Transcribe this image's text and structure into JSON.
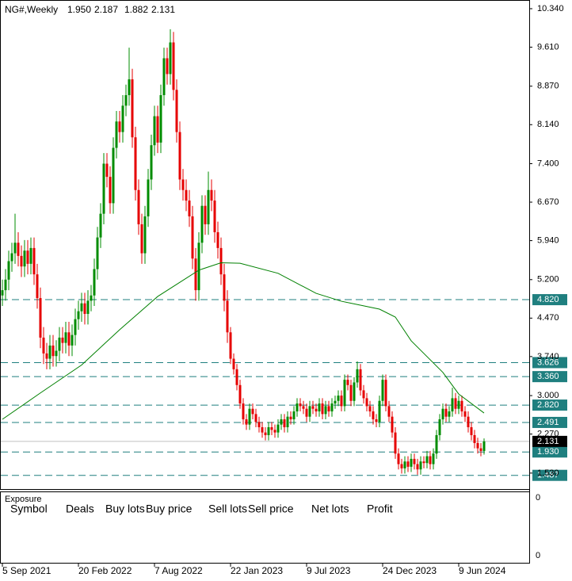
{
  "chart_data": {
    "type": "candlestick",
    "title": "NG#,Weekly",
    "last_labels": [
      "1.950",
      "2.187",
      "1.882",
      "2.131"
    ],
    "up_color": "#008c00",
    "down_color": "#e60000",
    "xlim": [
      -0.75,
      166.25
    ],
    "xticks": [
      {
        "value": 0,
        "label": "5 Sep 2021"
      },
      {
        "value": 24,
        "label": "20 Feb 2022"
      },
      {
        "value": 48,
        "label": "7 Aug 2022"
      },
      {
        "value": 72,
        "label": "22 Jan 2023"
      },
      {
        "value": 96,
        "label": "9 Jul 2023"
      },
      {
        "value": 120,
        "label": "24 Dec 2023"
      },
      {
        "value": 144,
        "label": "9 Jun 2024"
      }
    ],
    "ylim": [
      1.227,
      10.505
    ],
    "yticks": [
      {
        "value": 10.34,
        "label": "10.340"
      },
      {
        "value": 9.61,
        "label": "9.610"
      },
      {
        "value": 8.87,
        "label": "8.870"
      },
      {
        "value": 8.14,
        "label": "8.140"
      },
      {
        "value": 7.4,
        "label": "7.400"
      },
      {
        "value": 6.67,
        "label": "6.670"
      },
      {
        "value": 5.94,
        "label": "5.940"
      },
      {
        "value": 5.2,
        "label": "5.200"
      },
      {
        "value": 4.47,
        "label": "4.470"
      },
      {
        "value": 3.74,
        "label": "3.740"
      },
      {
        "value": 3.0,
        "label": "3.000"
      },
      {
        "value": 2.27,
        "label": "2.270"
      },
      {
        "value": 1.53,
        "label": "1.530"
      }
    ],
    "ohlc": {
      "open": [
        4.9,
        5.0,
        5.2,
        5.55,
        5.7,
        5.9,
        5.65,
        5.45,
        5.75,
        5.5,
        5.8,
        5.3,
        4.85,
        4.1,
        3.8,
        3.7,
        3.95,
        3.75,
        3.85,
        4.1,
        4.0,
        4.2,
        3.95,
        4.15,
        4.45,
        4.6,
        4.75,
        4.55,
        4.8,
        4.9,
        5.4,
        6.0,
        6.45,
        7.4,
        7.15,
        6.65,
        7.7,
        8.2,
        8.0,
        8.5,
        8.7,
        9.0,
        7.9,
        6.9,
        6.25,
        5.7,
        6.4,
        7.1,
        7.75,
        8.3,
        7.8,
        8.7,
        9.4,
        9.1,
        9.7,
        8.8,
        8.0,
        7.1,
        6.9,
        6.7,
        6.4,
        5.6,
        5.0,
        5.9,
        6.6,
        6.25,
        6.9,
        6.7,
        6.1,
        5.8,
        5.3,
        4.8,
        4.2,
        3.7,
        3.5,
        3.2,
        2.85,
        2.55,
        2.45,
        2.75,
        2.65,
        2.5,
        2.4,
        2.3,
        2.25,
        2.4,
        2.35,
        2.3,
        2.45,
        2.55,
        2.4,
        2.6,
        2.55,
        2.7,
        2.85,
        2.8,
        2.75,
        2.6,
        2.8,
        2.75,
        2.7,
        2.85,
        2.65,
        2.8,
        2.7,
        2.85,
        2.9,
        3.0,
        2.8,
        3.3,
        3.2,
        2.9,
        3.25,
        3.5,
        3.1,
        2.95,
        2.8,
        2.7,
        2.55,
        2.5,
        2.9,
        3.3,
        2.8,
        2.6,
        2.3,
        1.9,
        1.7,
        1.62,
        1.75,
        1.65,
        1.8,
        1.7,
        1.6,
        1.75,
        1.72,
        1.85,
        1.7,
        1.9,
        2.25,
        2.55,
        2.75,
        2.6,
        2.7,
        2.95,
        2.75,
        2.9,
        2.7,
        2.6,
        2.4,
        2.25,
        2.1,
        2.0,
        1.95
      ],
      "high": [
        5.2,
        5.4,
        5.75,
        5.9,
        6.45,
        6.1,
        5.85,
        5.95,
        5.95,
        6.0,
        6.0,
        5.5,
        5.05,
        4.3,
        4.0,
        4.15,
        4.15,
        4.05,
        4.3,
        4.3,
        4.4,
        4.4,
        4.35,
        4.65,
        4.8,
        4.95,
        4.95,
        5.0,
        5.1,
        5.6,
        6.2,
        6.65,
        7.6,
        7.6,
        7.35,
        7.9,
        8.4,
        8.4,
        8.7,
        8.9,
        9.6,
        9.2,
        8.1,
        7.1,
        6.45,
        6.6,
        7.3,
        7.95,
        8.5,
        8.5,
        8.9,
        9.6,
        9.6,
        9.95,
        9.9,
        9.0,
        8.2,
        7.3,
        7.1,
        6.9,
        6.6,
        5.8,
        6.1,
        6.8,
        6.8,
        7.25,
        7.1,
        6.9,
        6.3,
        6.0,
        5.5,
        5.0,
        4.3,
        3.8,
        3.6,
        3.3,
        2.95,
        2.65,
        2.85,
        2.85,
        2.75,
        2.6,
        2.5,
        2.4,
        2.5,
        2.5,
        2.45,
        2.55,
        2.65,
        2.65,
        2.7,
        2.7,
        2.8,
        2.95,
        2.95,
        2.9,
        2.85,
        2.9,
        2.9,
        2.85,
        2.95,
        2.95,
        2.9,
        2.9,
        2.95,
        3.0,
        3.1,
        3.1,
        3.4,
        3.4,
        3.3,
        3.35,
        3.65,
        3.6,
        3.2,
        3.05,
        2.9,
        2.8,
        2.65,
        3.0,
        3.4,
        3.4,
        2.9,
        2.7,
        2.4,
        2.0,
        1.8,
        1.85,
        1.85,
        1.9,
        1.9,
        1.8,
        1.85,
        1.85,
        1.95,
        1.95,
        2.0,
        2.35,
        2.65,
        2.85,
        2.85,
        2.8,
        3.15,
        3.05,
        3.0,
        3.0,
        2.8,
        2.7,
        2.5,
        2.35,
        2.2,
        2.1,
        2.187
      ],
      "low": [
        4.7,
        4.8,
        5.0,
        5.35,
        5.5,
        5.45,
        5.25,
        5.25,
        5.3,
        5.3,
        5.1,
        4.65,
        3.9,
        3.6,
        3.5,
        3.5,
        3.55,
        3.55,
        3.65,
        3.8,
        3.8,
        3.75,
        3.75,
        3.95,
        4.25,
        4.4,
        4.35,
        4.35,
        4.6,
        4.7,
        5.2,
        5.8,
        6.25,
        6.95,
        6.45,
        6.45,
        7.5,
        7.8,
        7.8,
        8.3,
        8.5,
        7.7,
        6.7,
        6.05,
        5.5,
        5.5,
        6.2,
        6.9,
        7.55,
        7.6,
        7.6,
        8.5,
        8.9,
        8.9,
        8.6,
        7.8,
        6.9,
        6.7,
        6.5,
        6.2,
        5.4,
        4.8,
        4.8,
        5.7,
        6.05,
        6.05,
        6.5,
        5.9,
        5.6,
        5.1,
        4.6,
        4.0,
        3.6,
        3.4,
        3.1,
        2.75,
        2.45,
        2.35,
        2.35,
        2.55,
        2.4,
        2.3,
        2.2,
        2.15,
        2.15,
        2.25,
        2.2,
        2.2,
        2.35,
        2.3,
        2.3,
        2.45,
        2.45,
        2.6,
        2.7,
        2.65,
        2.5,
        2.5,
        2.65,
        2.6,
        2.6,
        2.55,
        2.55,
        2.6,
        2.6,
        2.75,
        2.8,
        2.7,
        2.7,
        3.1,
        2.8,
        2.8,
        3.15,
        3.0,
        2.85,
        2.7,
        2.6,
        2.45,
        2.4,
        2.4,
        2.8,
        2.7,
        2.5,
        2.2,
        1.8,
        1.6,
        1.52,
        1.52,
        1.55,
        1.55,
        1.6,
        1.5,
        1.5,
        1.62,
        1.62,
        1.6,
        1.6,
        1.8,
        2.15,
        2.45,
        2.5,
        2.5,
        2.6,
        2.65,
        2.65,
        2.6,
        2.5,
        2.3,
        2.15,
        2.0,
        1.9,
        1.85,
        1.882
      ],
      "close": [
        5.0,
        5.2,
        5.55,
        5.7,
        5.9,
        5.65,
        5.45,
        5.75,
        5.5,
        5.8,
        5.3,
        4.85,
        4.1,
        3.8,
        3.7,
        3.95,
        3.75,
        3.85,
        4.1,
        4.0,
        4.2,
        3.95,
        4.15,
        4.45,
        4.6,
        4.75,
        4.55,
        4.8,
        4.9,
        5.4,
        6.0,
        6.45,
        7.4,
        7.15,
        6.65,
        7.7,
        8.2,
        8.0,
        8.5,
        8.7,
        9.0,
        7.9,
        6.9,
        6.25,
        5.7,
        6.4,
        7.1,
        7.75,
        8.3,
        7.8,
        8.7,
        9.4,
        9.1,
        9.7,
        8.8,
        8.0,
        7.1,
        6.9,
        6.7,
        6.4,
        5.6,
        5.0,
        5.9,
        6.6,
        6.25,
        6.9,
        6.7,
        6.1,
        5.8,
        5.3,
        4.8,
        4.2,
        3.7,
        3.5,
        3.2,
        2.85,
        2.55,
        2.45,
        2.75,
        2.65,
        2.5,
        2.4,
        2.3,
        2.25,
        2.4,
        2.35,
        2.3,
        2.45,
        2.55,
        2.4,
        2.6,
        2.55,
        2.7,
        2.85,
        2.8,
        2.75,
        2.6,
        2.8,
        2.75,
        2.7,
        2.85,
        2.65,
        2.8,
        2.7,
        2.85,
        2.9,
        3.0,
        2.8,
        3.3,
        3.2,
        2.9,
        3.25,
        3.5,
        3.1,
        2.95,
        2.8,
        2.7,
        2.55,
        2.5,
        2.9,
        3.3,
        2.8,
        2.6,
        2.3,
        1.9,
        1.7,
        1.62,
        1.75,
        1.65,
        1.8,
        1.7,
        1.6,
        1.75,
        1.72,
        1.85,
        1.7,
        1.9,
        2.25,
        2.55,
        2.75,
        2.6,
        2.7,
        2.95,
        2.75,
        2.9,
        2.7,
        2.6,
        2.4,
        2.25,
        2.1,
        2.0,
        1.95,
        2.131
      ]
    },
    "moving_average": {
      "color": "#008000",
      "x": [
        0,
        12,
        25,
        37,
        49,
        62,
        69,
        75,
        87,
        99,
        107,
        119,
        124,
        129,
        139,
        144,
        152
      ],
      "values": [
        2.55,
        3.05,
        3.58,
        4.25,
        4.88,
        5.38,
        5.52,
        5.51,
        5.32,
        4.94,
        4.79,
        4.64,
        4.49,
        4.04,
        3.44,
        3.03,
        2.67
      ]
    },
    "levels": {
      "color": "#1f7f7f",
      "items": [
        {
          "value": 4.82,
          "label": "4.820"
        },
        {
          "value": 3.626,
          "label": "3.626"
        },
        {
          "value": 3.36,
          "label": "3.360"
        },
        {
          "value": 2.82,
          "label": "2.820"
        },
        {
          "value": 2.491,
          "label": "2.491"
        },
        {
          "value": 1.93,
          "label": "1.930"
        },
        {
          "value": 1.487,
          "label": "1.487"
        }
      ]
    },
    "current_price": {
      "value": 2.131,
      "label": "2.131"
    },
    "exposure": {
      "title": "Exposure",
      "columns": [
        "Symbol",
        "Deals",
        "Buy lots",
        "Buy price",
        "Sell lots",
        "Sell price",
        "Net lots",
        "Profit"
      ],
      "scale": [
        0,
        0
      ]
    }
  }
}
